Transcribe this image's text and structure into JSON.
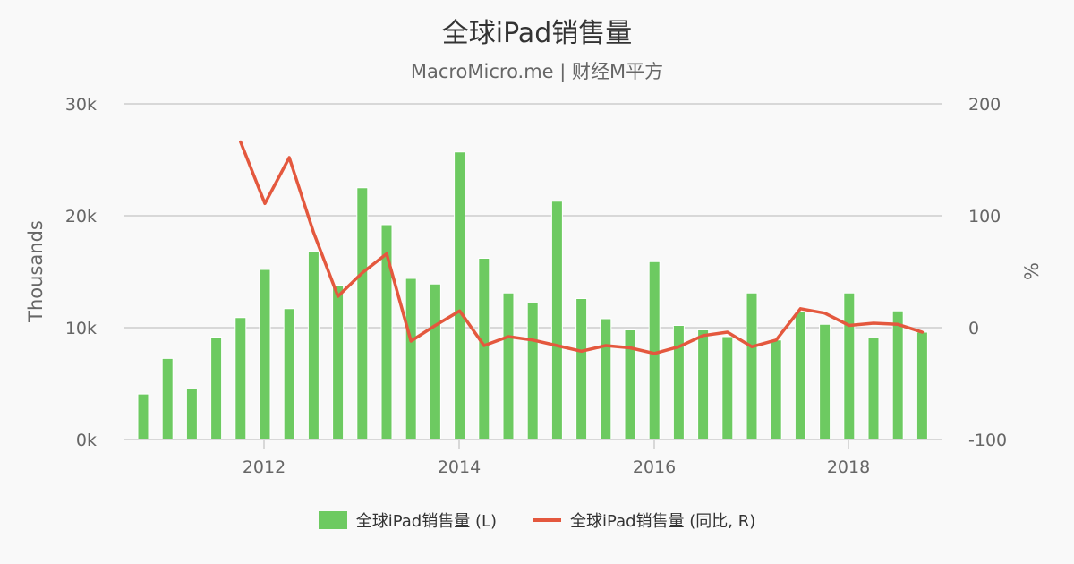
{
  "header": {
    "title": "全球iPad销售量",
    "subtitle": "MacroMicro.me | 财经M平方"
  },
  "colors": {
    "bar": "#6dca61",
    "line": "#e4583e",
    "grid": "#d8d8d8",
    "background": "#f9f9f9"
  },
  "legend": {
    "items": [
      {
        "label": "全球iPad销售量 (L)",
        "type": "bar",
        "color": "#6dca61"
      },
      {
        "label": "全球iPad销售量 (同比, R)",
        "type": "line",
        "color": "#e4583e"
      }
    ]
  },
  "chart_data": {
    "type": "bar+line",
    "title": "全球iPad销售量",
    "subtitle": "MacroMicro.me | 财经M平方",
    "xlabel": "",
    "ylabel": "Thousands",
    "y2label": "%",
    "ylim": [
      0,
      30000
    ],
    "y2lim": [
      -100,
      200
    ],
    "yticks": [
      "0k",
      "10k",
      "20k",
      "30k"
    ],
    "y2ticks": [
      "-100",
      "0",
      "100",
      "200"
    ],
    "xticks": [
      "2012",
      "2014",
      "2016",
      "2018"
    ],
    "grid": true,
    "legend_position": "bottom",
    "categories": [
      "2010-09",
      "2010-12",
      "2011-03",
      "2011-06",
      "2011-09",
      "2011-12",
      "2012-03",
      "2012-06",
      "2012-09",
      "2012-12",
      "2013-03",
      "2013-06",
      "2013-09",
      "2013-12",
      "2014-03",
      "2014-06",
      "2014-09",
      "2014-12",
      "2015-03",
      "2015-06",
      "2015-09",
      "2015-12",
      "2016-03",
      "2016-06",
      "2016-09",
      "2016-12",
      "2017-03",
      "2017-06",
      "2017-09",
      "2017-12",
      "2018-03",
      "2018-06",
      "2018-09"
    ],
    "series": [
      {
        "name": "全球iPad销售量 (L)",
        "type": "bar",
        "axis": "left",
        "values": [
          4070,
          7250,
          4540,
          9160,
          10900,
          15200,
          11700,
          16800,
          13800,
          22500,
          19200,
          14400,
          13900,
          25700,
          16200,
          13100,
          12200,
          21300,
          12600,
          10800,
          9800,
          15900,
          10200,
          9800,
          9200,
          13100,
          8900,
          11400,
          10300,
          13100,
          9100,
          11500,
          9600
        ]
      },
      {
        "name": "全球iPad销售量 (同比, R)",
        "type": "line",
        "axis": "right",
        "values": [
          null,
          null,
          null,
          null,
          166,
          111,
          152,
          85,
          28,
          49,
          66,
          -12,
          2,
          15,
          -16,
          -8,
          -11,
          -16,
          -21,
          -16,
          -18,
          -23,
          -17,
          -7,
          -4,
          -17,
          -11,
          17,
          13,
          2,
          4,
          3,
          -4
        ]
      }
    ]
  }
}
